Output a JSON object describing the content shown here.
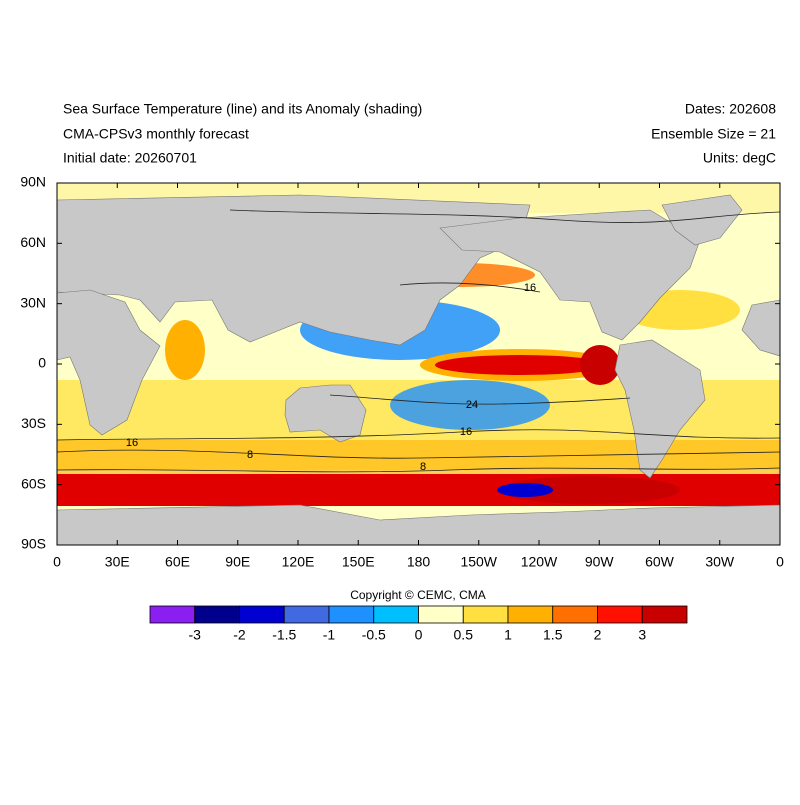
{
  "header": {
    "title": "Sea Surface Temperature (line) and its Anomaly (shading)",
    "subtitle": "CMA-CPSv3 monthly forecast",
    "initial_date": "Initial date: 20260701",
    "dates": "Dates: 202608",
    "ensemble": "Ensemble Size = 21",
    "units": "Units: degC"
  },
  "map": {
    "lat_labels": [
      "90N",
      "60N",
      "30N",
      "0",
      "30S",
      "60S",
      "90S"
    ],
    "lon_labels": [
      "0",
      "30E",
      "60E",
      "90E",
      "120E",
      "150E",
      "180",
      "150W",
      "120W",
      "90W",
      "60W",
      "30W",
      "0"
    ],
    "contour_labels": [
      "16",
      "24",
      "16",
      "16",
      "8",
      "8"
    ]
  },
  "colorbar": {
    "colors": [
      "#8b1ef0",
      "#00008c",
      "#0000d0",
      "#4169e1",
      "#1e90ff",
      "#00bfff",
      "#ffffc8",
      "#ffe040",
      "#ffb000",
      "#ff7000",
      "#ff1000",
      "#c80000"
    ],
    "labels": [
      "-3",
      "-2",
      "-1.5",
      "-1",
      "-0.5",
      "0",
      "0.5",
      "1",
      "1.5",
      "2",
      "3"
    ]
  },
  "copyright": "Copyright © CEMC, CMA"
}
